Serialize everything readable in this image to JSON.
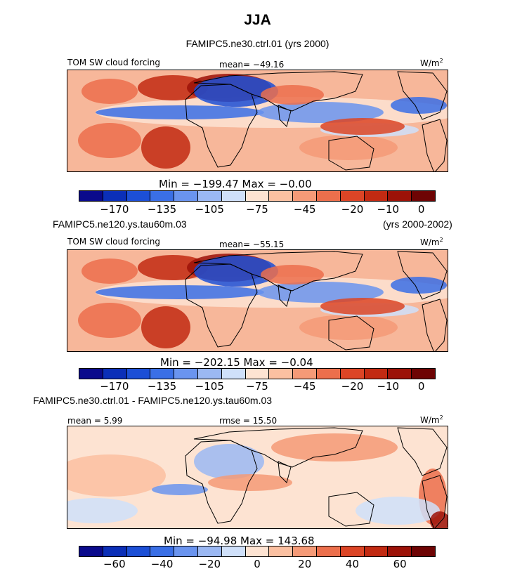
{
  "figure": {
    "title": "JJA"
  },
  "chart_data": [
    {
      "type": "heatmap",
      "subtitle": "FAMIPC5.ne30.ctrl.01 (yrs 2000)",
      "left_label": "TOM SW cloud forcing",
      "center_label": "mean= -49.16",
      "units_label": "W/m",
      "units_sup": "2",
      "stats": "Min = -199.47 Max =  -0.00",
      "colorbar_ticks": [
        "-170",
        "-135",
        "-105",
        "-75",
        "-45",
        "-20",
        "-10",
        "0"
      ],
      "colorbar_colors": [
        "#0a0a8c",
        "#0b2fb8",
        "#1c4fd6",
        "#3a6fe6",
        "#6a94ef",
        "#9bb8f3",
        "#cfe0fa",
        "#fde3d2",
        "#fbc0a1",
        "#f59a77",
        "#ec6f4c",
        "#dc4526",
        "#c22a12",
        "#9c1208",
        "#6e0404"
      ],
      "mean": -49.16,
      "min": -199.47,
      "max": -0.0
    },
    {
      "type": "heatmap",
      "subtitle_left": "FAMIPC5.ne120.ys.tau60m.03",
      "subtitle_right": "(yrs 2000-2002)",
      "left_label": "TOM SW cloud forcing",
      "center_label": "mean= -55.15",
      "units_label": "W/m",
      "units_sup": "2",
      "stats": "Min = -202.15 Max =  -0.04",
      "colorbar_ticks": [
        "-170",
        "-135",
        "-105",
        "-75",
        "-45",
        "-20",
        "-10",
        "0"
      ],
      "colorbar_colors": [
        "#0a0a8c",
        "#0b2fb8",
        "#1c4fd6",
        "#3a6fe6",
        "#6a94ef",
        "#9bb8f3",
        "#cfe0fa",
        "#fde3d2",
        "#fbc0a1",
        "#f59a77",
        "#ec6f4c",
        "#dc4526",
        "#c22a12",
        "#9c1208",
        "#6e0404"
      ],
      "mean": -55.15,
      "min": -202.15,
      "max": -0.04
    },
    {
      "type": "heatmap",
      "subtitle": "FAMIPC5.ne30.ctrl.01 - FAMIPC5.ne120.ys.tau60m.03",
      "left_label": "mean =   5.99",
      "center_label": "rmse =  15.50",
      "units_label": "W/m",
      "units_sup": "2",
      "stats": "Min = -94.98 Max = 143.68",
      "colorbar_ticks": [
        "-60",
        "-40",
        "-20",
        "0",
        "20",
        "40",
        "60"
      ],
      "colorbar_colors": [
        "#0a0a8c",
        "#0b2fb8",
        "#1c4fd6",
        "#3a6fe6",
        "#6a94ef",
        "#9bb8f3",
        "#cfe0fa",
        "#fde3d2",
        "#fbc0a1",
        "#f59a77",
        "#ec6f4c",
        "#dc4526",
        "#c22a12",
        "#9c1208",
        "#6e0404"
      ],
      "mean": 5.99,
      "rmse": 15.5,
      "min": -94.98,
      "max": 143.68
    }
  ]
}
